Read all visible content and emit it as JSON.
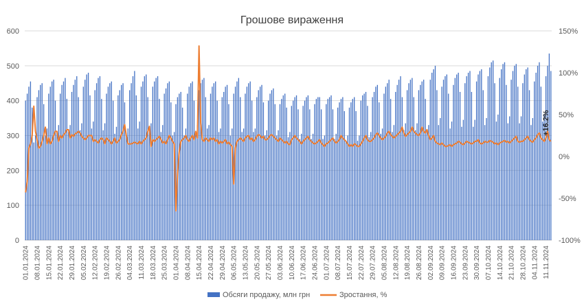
{
  "chart_data": {
    "type": "bar+line",
    "title": "Грошове вираження",
    "x_labels": [
      "01.01.2024",
      "08.01.2024",
      "15.01.2024",
      "22.01.2024",
      "29.01.2024",
      "05.02.2024",
      "12.02.2024",
      "19.02.2024",
      "26.02.2024",
      "04.03.2024",
      "11.03.2024",
      "18.03.2024",
      "25.03.2024",
      "01.04.2024",
      "08.04.2024",
      "15.04.2024",
      "22.04.2024",
      "29.04.2024",
      "06.05.2024",
      "13.05.2024",
      "20.05.2024",
      "27.05.2024",
      "03.06.2024",
      "10.06.2024",
      "17.06.2024",
      "24.06.2024",
      "01.07.2024",
      "08.07.2024",
      "15.07.2024",
      "22.07.2024",
      "29.07.2024",
      "05.08.2024",
      "12.08.2024",
      "19.08.2024",
      "26.08.2024",
      "02.09.2024",
      "09.09.2024",
      "16.09.2024",
      "23.09.2024",
      "30.09.2024",
      "07.10.2024",
      "14.10.2024",
      "21.10.2024",
      "28.10.2024",
      "04.11.2024",
      "11.11.2024"
    ],
    "y_left": {
      "min": 0,
      "max": 600,
      "ticks": [
        "0",
        "100",
        "200",
        "300",
        "400",
        "500",
        "600"
      ]
    },
    "y_right": {
      "min": -100,
      "max": 150,
      "ticks": [
        "-100%",
        "-50%",
        "0%",
        "50%",
        "100%",
        "150%"
      ]
    },
    "grid": true,
    "legend_position": "bottom",
    "series": [
      {
        "name": "Обсяги продажу, млн грн",
        "kind": "bar",
        "axis": "left",
        "color": "#4472C4",
        "weekly_values": [
          [
            400,
            420,
            440,
            455,
            380,
            280,
            300
          ],
          [
            410,
            430,
            445,
            450,
            390,
            300,
            320
          ],
          [
            420,
            440,
            455,
            460,
            400,
            310,
            330
          ],
          [
            420,
            445,
            455,
            465,
            405,
            310,
            330
          ],
          [
            425,
            445,
            460,
            470,
            410,
            315,
            335
          ],
          [
            440,
            460,
            475,
            480,
            415,
            320,
            340
          ],
          [
            430,
            450,
            465,
            470,
            405,
            315,
            335
          ],
          [
            420,
            440,
            450,
            455,
            400,
            305,
            325
          ],
          [
            415,
            430,
            445,
            450,
            395,
            300,
            320
          ],
          [
            430,
            450,
            470,
            485,
            415,
            320,
            340
          ],
          [
            440,
            455,
            470,
            475,
            410,
            315,
            335
          ],
          [
            440,
            455,
            465,
            470,
            405,
            310,
            330
          ],
          [
            420,
            435,
            450,
            455,
            395,
            300,
            310
          ],
          [
            390,
            410,
            420,
            425,
            380,
            300,
            320
          ],
          [
            420,
            440,
            450,
            455,
            400,
            310,
            330
          ],
          [
            430,
            450,
            460,
            465,
            410,
            320,
            330
          ],
          [
            420,
            440,
            450,
            455,
            400,
            310,
            320
          ],
          [
            410,
            425,
            440,
            445,
            390,
            300,
            320
          ],
          [
            420,
            440,
            455,
            465,
            410,
            310,
            320
          ],
          [
            420,
            440,
            450,
            455,
            400,
            310,
            320
          ],
          [
            410,
            430,
            440,
            445,
            395,
            300,
            315
          ],
          [
            400,
            420,
            430,
            435,
            390,
            300,
            315
          ],
          [
            390,
            405,
            415,
            420,
            380,
            295,
            310
          ],
          [
            385,
            400,
            410,
            415,
            375,
            290,
            305
          ],
          [
            385,
            400,
            410,
            415,
            375,
            290,
            305
          ],
          [
            390,
            405,
            410,
            410,
            375,
            290,
            300
          ],
          [
            390,
            405,
            410,
            415,
            375,
            290,
            305
          ],
          [
            380,
            395,
            405,
            410,
            370,
            285,
            300
          ],
          [
            380,
            395,
            405,
            410,
            370,
            285,
            300
          ],
          [
            400,
            415,
            420,
            425,
            385,
            295,
            310
          ],
          [
            410,
            425,
            440,
            445,
            395,
            305,
            320
          ],
          [
            420,
            440,
            450,
            460,
            405,
            310,
            330
          ],
          [
            425,
            445,
            460,
            470,
            410,
            315,
            335
          ],
          [
            430,
            450,
            460,
            465,
            410,
            315,
            335
          ],
          [
            430,
            445,
            455,
            460,
            405,
            310,
            330
          ],
          [
            460,
            480,
            490,
            500,
            430,
            330,
            350
          ],
          [
            440,
            460,
            470,
            475,
            420,
            320,
            340
          ],
          [
            445,
            465,
            475,
            480,
            425,
            325,
            345
          ],
          [
            450,
            470,
            480,
            485,
            425,
            325,
            345
          ],
          [
            455,
            475,
            485,
            490,
            430,
            330,
            350
          ],
          [
            470,
            495,
            510,
            515,
            450,
            340,
            360
          ],
          [
            465,
            490,
            505,
            510,
            445,
            335,
            355
          ],
          [
            460,
            485,
            500,
            505,
            440,
            335,
            355
          ],
          [
            450,
            475,
            490,
            495,
            430,
            330,
            350
          ],
          [
            455,
            480,
            500,
            510,
            440,
            340,
            360
          ],
          [
            470,
            500,
            535,
            485
          ]
        ]
      },
      {
        "name": "Зростання, %",
        "kind": "line",
        "axis": "right",
        "color": "#ED7D31",
        "weekly_values": [
          [
            -43,
            -30,
            10,
            15,
            25,
            60,
            30
          ],
          [
            20,
            10,
            12,
            18,
            25,
            35,
            15
          ],
          [
            22,
            15,
            18,
            25,
            30,
            30,
            18
          ],
          [
            25,
            22,
            26,
            28,
            32,
            32,
            22
          ],
          [
            26,
            24,
            27,
            28,
            30,
            28,
            24
          ],
          [
            22,
            20,
            22,
            25,
            25,
            25,
            18
          ],
          [
            20,
            18,
            16,
            20,
            22,
            20,
            15
          ],
          [
            22,
            20,
            18,
            15,
            18,
            22,
            16
          ],
          [
            18,
            20,
            26,
            30,
            38,
            25,
            15
          ],
          [
            15,
            15,
            16,
            17,
            16,
            15,
            18
          ],
          [
            15,
            18,
            20,
            22,
            30,
            36,
            12
          ],
          [
            20,
            18,
            20,
            22,
            24,
            20,
            16
          ],
          [
            18,
            15,
            20,
            25,
            22,
            18,
            15
          ],
          [
            -65,
            -20,
            5,
            18,
            20,
            22,
            25
          ],
          [
            20,
            18,
            22,
            25,
            20,
            30,
            22
          ],
          [
            132,
            40,
            20,
            18,
            22,
            20,
            18
          ],
          [
            22,
            20,
            22,
            18,
            20,
            15,
            18
          ],
          [
            16,
            18,
            20,
            15,
            17,
            14,
            12
          ],
          [
            -33,
            10,
            18,
            20,
            22,
            20,
            18
          ],
          [
            22,
            24,
            25,
            20,
            22,
            18,
            20
          ],
          [
            24,
            26,
            25,
            22,
            24,
            20,
            20
          ],
          [
            22,
            25,
            26,
            24,
            22,
            20,
            18
          ],
          [
            22,
            20,
            18,
            16,
            18,
            15,
            14
          ],
          [
            20,
            22,
            25,
            22,
            20,
            18,
            15
          ],
          [
            18,
            20,
            22,
            24,
            20,
            18,
            16
          ],
          [
            15,
            16,
            18,
            20,
            16,
            14,
            12
          ],
          [
            15,
            16,
            18,
            20,
            22,
            18,
            16
          ],
          [
            18,
            20,
            25,
            22,
            20,
            18,
            15
          ],
          [
            12,
            14,
            12,
            15,
            14,
            12,
            12
          ],
          [
            15,
            18,
            22,
            25,
            20,
            18,
            18
          ],
          [
            20,
            22,
            26,
            28,
            25,
            22,
            20
          ],
          [
            22,
            24,
            28,
            30,
            26,
            24,
            22
          ],
          [
            24,
            26,
            28,
            30,
            35,
            28,
            24
          ],
          [
            26,
            28,
            30,
            35,
            30,
            28,
            26
          ],
          [
            25,
            28,
            35,
            30,
            28,
            32,
            25
          ],
          [
            20,
            22,
            25,
            18,
            16,
            15,
            14
          ],
          [
            16,
            14,
            12,
            12,
            13,
            14,
            12
          ],
          [
            14,
            15,
            16,
            18,
            17,
            15,
            14
          ],
          [
            16,
            18,
            17,
            16,
            15,
            16,
            18
          ],
          [
            18,
            20,
            16,
            15,
            16,
            18,
            17
          ],
          [
            17,
            19,
            18,
            17,
            15,
            16,
            14
          ],
          [
            16,
            17,
            18,
            19,
            17,
            18,
            16
          ],
          [
            18,
            20,
            22,
            24,
            18,
            17,
            18
          ],
          [
            18,
            20,
            22,
            24,
            20,
            18,
            17
          ],
          [
            20,
            22,
            26,
            28,
            22,
            20,
            18
          ],
          [
            22,
            30,
            20,
            18
          ]
        ]
      }
    ],
    "annotation": "+16.2%"
  },
  "legend": {
    "bar_label": "Обсяги продажу, млн грн",
    "line_label": "Зростання, %"
  }
}
